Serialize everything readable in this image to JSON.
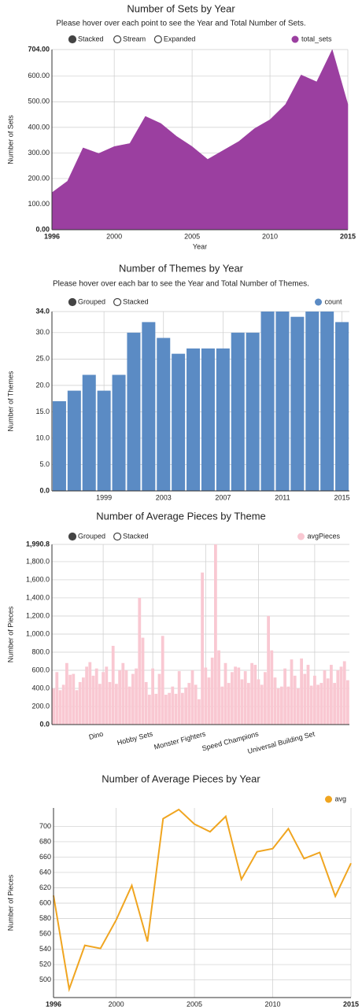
{
  "chart_data": [
    {
      "type": "area",
      "title": "Number of Sets by Year",
      "subtitle": "Please hover over each point to see the Year and Total Number of Sets.",
      "controls": [
        "Stacked",
        "Stream",
        "Expanded"
      ],
      "x": [
        1996,
        1997,
        1998,
        1999,
        2000,
        2001,
        2002,
        2003,
        2004,
        2005,
        2006,
        2007,
        2008,
        2009,
        2010,
        2011,
        2012,
        2013,
        2014,
        2015
      ],
      "series": [
        {
          "name": "total_sets",
          "color": "#9b3fa0",
          "values": [
            145,
            190,
            320,
            298,
            325,
            337,
            443,
            415,
            365,
            325,
            275,
            310,
            345,
            395,
            430,
            490,
            605,
            578,
            704,
            490
          ]
        }
      ],
      "xlim": [
        1996,
        2015
      ],
      "xticks": [
        1996,
        2000,
        2005,
        2010,
        2015
      ],
      "ylim": [
        0,
        704
      ],
      "yticks": [
        {
          "value": 0,
          "label": "0.00"
        },
        {
          "value": 100,
          "label": "100.00"
        },
        {
          "value": 200,
          "label": "200.00"
        },
        {
          "value": 300,
          "label": "300.00"
        },
        {
          "value": 400,
          "label": "400.00"
        },
        {
          "value": 500,
          "label": "500.00"
        },
        {
          "value": 600,
          "label": "600.00"
        },
        {
          "value": 704,
          "label": "704.00"
        }
      ],
      "ylabel": "Number of Sets",
      "xlabel": "Year",
      "grid": true
    },
    {
      "type": "bar",
      "title": "Number of Themes by Year",
      "subtitle": "Please hover over each bar to see the Year and Total Number of Themes.",
      "controls": [
        "Grouped",
        "Stacked"
      ],
      "categories": [
        null,
        null,
        null,
        "1999",
        null,
        null,
        null,
        "2003",
        null,
        null,
        null,
        "2007",
        null,
        null,
        null,
        "2011",
        null,
        null,
        null,
        "2015"
      ],
      "series": [
        {
          "name": "count",
          "color": "#5b8bc4",
          "values": [
            17,
            19,
            22,
            19,
            22,
            30,
            32,
            29,
            26,
            27,
            27,
            27,
            30,
            30,
            34,
            34,
            33,
            34,
            34,
            32
          ]
        }
      ],
      "ylim": [
        0,
        34
      ],
      "yticks": [
        {
          "value": 0,
          "label": "0.0"
        },
        {
          "value": 5,
          "label": "5.0"
        },
        {
          "value": 10,
          "label": "10.0"
        },
        {
          "value": 15,
          "label": "15.0"
        },
        {
          "value": 20,
          "label": "20.0"
        },
        {
          "value": 25,
          "label": "25.0"
        },
        {
          "value": 30,
          "label": "30.0"
        },
        {
          "value": 34,
          "label": "34.0"
        }
      ],
      "ylabel": "Number of Themes",
      "grid": true
    },
    {
      "type": "bar",
      "title": "Number of Average Pieces by Theme",
      "controls": [
        "Grouped",
        "Stacked"
      ],
      "categories": [
        null,
        null,
        null,
        null,
        null,
        null,
        null,
        null,
        null,
        null,
        null,
        null,
        null,
        null,
        null,
        "Dino",
        null,
        null,
        null,
        null,
        null,
        null,
        null,
        null,
        null,
        null,
        null,
        null,
        null,
        null,
        "Hobby Sets",
        null,
        null,
        null,
        null,
        null,
        null,
        null,
        null,
        null,
        null,
        null,
        null,
        null,
        null,
        null,
        "Monster Fighters",
        null,
        null,
        null,
        null,
        null,
        null,
        null,
        null,
        null,
        null,
        null,
        null,
        null,
        null,
        null,
        "Speed Champions",
        null,
        null,
        null,
        null,
        null,
        null,
        null,
        null,
        null,
        null,
        null,
        null,
        null,
        null,
        null,
        null,
        "Universal Building Set",
        null,
        null,
        null,
        null,
        null,
        null,
        null,
        null,
        null,
        null
      ],
      "series": [
        {
          "name": "avgPieces",
          "color": "#f9c8d2",
          "values": [
            400,
            580,
            380,
            440,
            680,
            550,
            560,
            380,
            470,
            520,
            640,
            690,
            540,
            620,
            450,
            580,
            640,
            470,
            870,
            450,
            600,
            680,
            600,
            420,
            560,
            620,
            1400,
            960,
            470,
            330,
            620,
            340,
            560,
            980,
            330,
            350,
            420,
            340,
            590,
            350,
            410,
            460,
            600,
            440,
            280,
            1680,
            630,
            520,
            740,
            1990.8,
            820,
            420,
            680,
            460,
            580,
            640,
            630,
            500,
            590,
            460,
            680,
            660,
            500,
            440,
            580,
            1200,
            820,
            520,
            400,
            420,
            620,
            420,
            720,
            540,
            400,
            730,
            560,
            660,
            430,
            540,
            440,
            460,
            600,
            510,
            660,
            460,
            600,
            640,
            700,
            490
          ]
        }
      ],
      "ylim": [
        0,
        1990.8
      ],
      "yticks": [
        {
          "value": 0,
          "label": "0.0"
        },
        {
          "value": 200,
          "label": "200.0"
        },
        {
          "value": 400,
          "label": "400.0"
        },
        {
          "value": 600,
          "label": "600.0"
        },
        {
          "value": 800,
          "label": "800.0"
        },
        {
          "value": 1000,
          "label": "1,000.0"
        },
        {
          "value": 1200,
          "label": "1,200.0"
        },
        {
          "value": 1400,
          "label": "1,400.0"
        },
        {
          "value": 1600,
          "label": "1,600.0"
        },
        {
          "value": 1800,
          "label": "1,800.0"
        },
        {
          "value": 1990.8,
          "label": "1,990.8"
        }
      ],
      "ylabel": "Number of Pieces",
      "grid": true
    },
    {
      "type": "line",
      "title": "Number of Average Pieces by Year",
      "x": [
        1996,
        1997,
        1998,
        1999,
        2000,
        2001,
        2002,
        2003,
        2004,
        2005,
        2006,
        2007,
        2008,
        2009,
        2010,
        2011,
        2012,
        2013,
        2014,
        2015
      ],
      "series": [
        {
          "name": "avg",
          "color": "#f0a520",
          "values": [
            610,
            488,
            545,
            541,
            578,
            623,
            550,
            710,
            722,
            703,
            693,
            713,
            631,
            667,
            671,
            697,
            658,
            666,
            609,
            652
          ]
        }
      ],
      "xlim": [
        1996,
        2015
      ],
      "xticks": [
        1996,
        2000,
        2005,
        2010,
        2015
      ],
      "ylim": [
        477,
        724
      ],
      "yticks": [
        500,
        520,
        540,
        560,
        580,
        600,
        620,
        640,
        660,
        680,
        700
      ],
      "ylabel": "Number of Pieces",
      "grid": true
    }
  ]
}
